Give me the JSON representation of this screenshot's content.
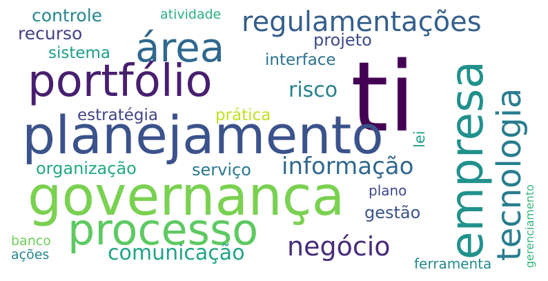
{
  "words": {
    "ti": "ti",
    "governanca": "governança",
    "planejamento": "planejamento",
    "portfolio": "portfólio",
    "area": "área",
    "processo": "processo",
    "empresa": "empresa",
    "tecnologia": "tecnologia",
    "regulamentacoes": "regulamentações",
    "informacao": "informação",
    "negocio": "negócio",
    "comunicacao": "comunicação",
    "risco": "risco",
    "controle": "controle",
    "recurso": "recurso",
    "projeto": "projeto",
    "sistema": "sistema",
    "interface": "interface",
    "atividade": "atividade",
    "estrategia": "estratégia",
    "pratica": "prática",
    "organizacao": "organização",
    "servico": "serviço",
    "lei": "lei",
    "plano": "plano",
    "gestao": "gestão",
    "gerenciamento": "gerenciamento",
    "banco": "banco",
    "acoes": "ações",
    "ferramenta": "ferramenta"
  },
  "colors": {
    "background": "#ffffff",
    "palette": [
      "#440154",
      "#481f70",
      "#3b528b",
      "#21918c",
      "#5ec962",
      "#7ad151",
      "#c2df23"
    ]
  }
}
